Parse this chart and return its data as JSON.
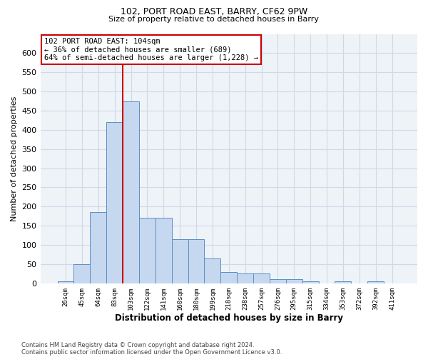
{
  "title1": "102, PORT ROAD EAST, BARRY, CF62 9PW",
  "title2": "Size of property relative to detached houses in Barry",
  "xlabel": "Distribution of detached houses by size in Barry",
  "ylabel": "Number of detached properties",
  "categories": [
    "26sqm",
    "45sqm",
    "64sqm",
    "83sqm",
    "103sqm",
    "122sqm",
    "141sqm",
    "160sqm",
    "180sqm",
    "199sqm",
    "218sqm",
    "238sqm",
    "257sqm",
    "276sqm",
    "295sqm",
    "315sqm",
    "334sqm",
    "353sqm",
    "372sqm",
    "392sqm",
    "411sqm"
  ],
  "values": [
    5,
    50,
    185,
    420,
    475,
    170,
    170,
    115,
    115,
    65,
    30,
    25,
    25,
    10,
    10,
    5,
    0,
    5,
    0,
    5,
    0
  ],
  "bar_color": "#c5d8f0",
  "bar_edge_color": "#5a8fc0",
  "vline_position": 3.5,
  "vline_color": "#cc0000",
  "annotation_text": "102 PORT ROAD EAST: 104sqm\n← 36% of detached houses are smaller (689)\n64% of semi-detached houses are larger (1,228) →",
  "annotation_box_edgecolor": "#cc0000",
  "ylim_max": 650,
  "yticks": [
    0,
    50,
    100,
    150,
    200,
    250,
    300,
    350,
    400,
    450,
    500,
    550,
    600
  ],
  "footnote": "Contains HM Land Registry data © Crown copyright and database right 2024.\nContains public sector information licensed under the Open Government Licence v3.0.",
  "plot_bg_color": "#eef3f8",
  "grid_color": "#d0d8e8"
}
